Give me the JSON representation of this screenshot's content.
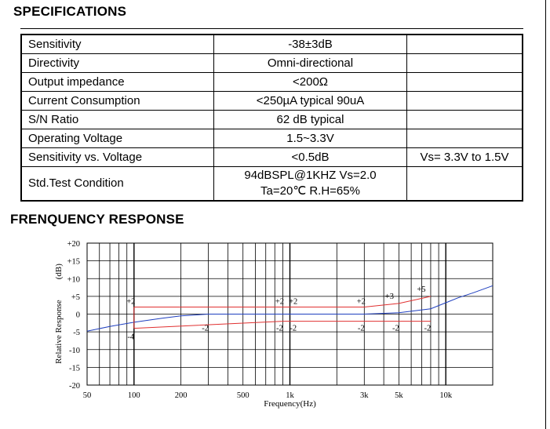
{
  "specifications": {
    "heading": "SPECIFICATIONS",
    "rows": [
      {
        "label": "Sensitivity",
        "value": "-38±3dB",
        "note": ""
      },
      {
        "label": "Directivity",
        "value": "Omni-directional",
        "note": ""
      },
      {
        "label": "Output impedance",
        "value": "<200Ω",
        "note": ""
      },
      {
        "label": "Current Consumption",
        "value": "<250µA   typical 90uA",
        "note": ""
      },
      {
        "label": "S/N Ratio",
        "value": "62 dB typical",
        "note": ""
      },
      {
        "label": "Operating Voltage",
        "value": "1.5~3.3V",
        "note": ""
      },
      {
        "label": "Sensitivity vs. Voltage",
        "value": "<0.5dB",
        "note": "Vs= 3.3V to 1.5V"
      }
    ],
    "test_condition": {
      "label": "Std.Test Condition",
      "line1": "94dBSPL@1KHZ Vs=2.0",
      "line2": "Ta=20℃  R.H=65%"
    }
  },
  "frequency_response": {
    "heading": "FRENQUENCY RESPONSE"
  },
  "chart_data": {
    "type": "line",
    "xlabel": "Frequency(Hz)",
    "ylabel": "Relative Response",
    "ylabel_unit": "(dB)",
    "x_scale": "log",
    "xlim": [
      50,
      20000
    ],
    "ylim": [
      -20,
      20
    ],
    "x_ticks": [
      50,
      100,
      200,
      500,
      1000,
      3000,
      5000,
      10000
    ],
    "x_tick_labels": [
      "50",
      "100",
      "200",
      "500",
      "1k",
      "3k",
      "5k",
      "10k"
    ],
    "y_ticks": [
      20,
      15,
      10,
      5,
      0,
      -5,
      -10,
      -15,
      -20
    ],
    "y_tick_labels": [
      "+20",
      "+15",
      "+10",
      "+5",
      "0",
      "-5",
      "-10",
      "-15",
      "-20"
    ],
    "grid": true,
    "series": [
      {
        "role": "response",
        "color": "#1f3fbf",
        "x": [
          50,
          70,
          100,
          150,
          200,
          300,
          500,
          1000,
          3000,
          5000,
          8000,
          10000,
          12000,
          15000,
          20000
        ],
        "y": [
          -4.8,
          -3.5,
          -2.3,
          -1.2,
          -0.5,
          0,
          0,
          0,
          0,
          0.4,
          1.5,
          3.2,
          4.6,
          6,
          8
        ]
      },
      {
        "role": "upper-limit",
        "color": "#e03030",
        "x": [
          100,
          900,
          1100,
          3000,
          5000,
          8000
        ],
        "y": [
          2,
          2,
          2,
          2,
          3,
          5
        ]
      },
      {
        "role": "lower-limit",
        "color": "#e03030",
        "x": [
          100,
          900,
          1100,
          3000,
          5000,
          8000
        ],
        "y": [
          -4,
          -2,
          -2,
          -2,
          -2,
          -2
        ]
      }
    ],
    "annotations": [
      {
        "text": "+2",
        "x": 100,
        "y": 2
      },
      {
        "text": "-4",
        "x": 100,
        "y": -4
      },
      {
        "text": "-2",
        "x": 300,
        "y": -2
      },
      {
        "text": "+2",
        "x": 900,
        "y": 2
      },
      {
        "text": "+2",
        "x": 1100,
        "y": 2
      },
      {
        "text": "-2",
        "x": 900,
        "y": -2
      },
      {
        "text": "-2",
        "x": 1100,
        "y": -2
      },
      {
        "text": "+2",
        "x": 3000,
        "y": 2
      },
      {
        "text": "-2",
        "x": 3000,
        "y": -2
      },
      {
        "text": "+3",
        "x": 5000,
        "y": 3
      },
      {
        "text": "-2",
        "x": 5000,
        "y": -2
      },
      {
        "text": "+5",
        "x": 8000,
        "y": 5
      },
      {
        "text": "-2",
        "x": 8000,
        "y": -2
      }
    ]
  }
}
